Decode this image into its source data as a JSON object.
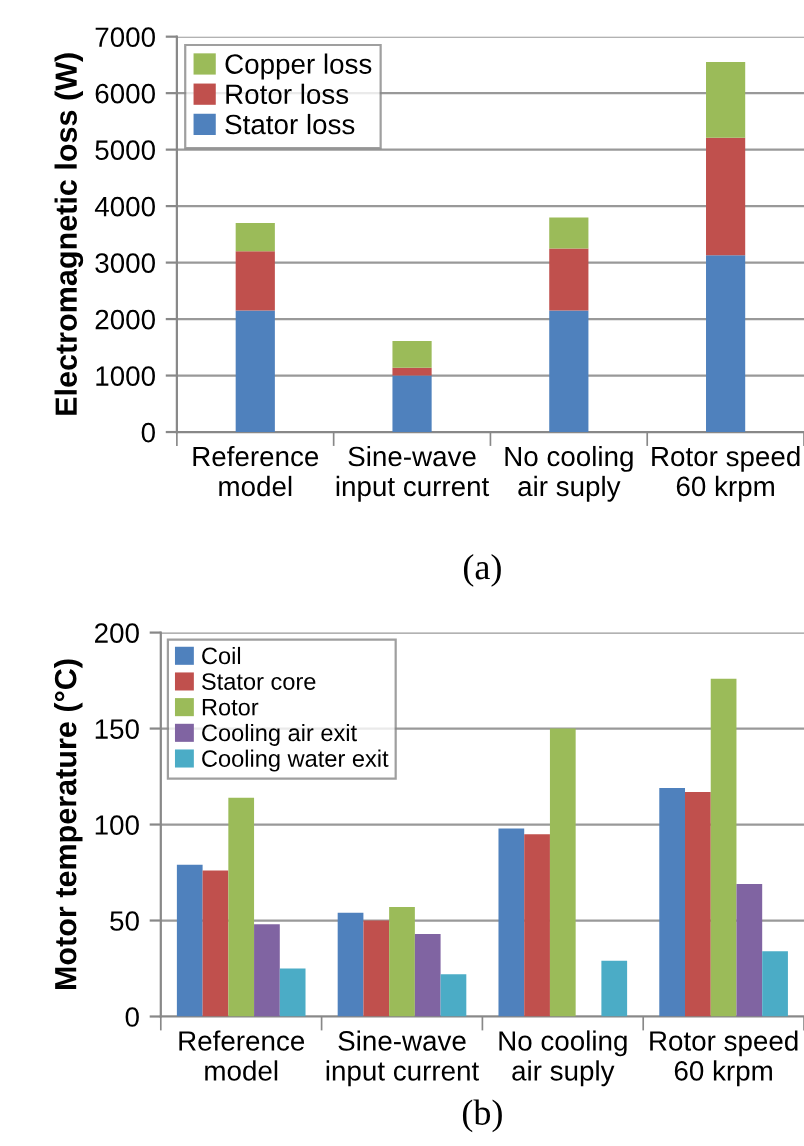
{
  "chart_data": [
    {
      "type": "bar",
      "stacked": true,
      "ylabel": "Electromagnetic loss (W)",
      "categories": [
        "Reference\nmodel",
        "Sine-wave\ninput current",
        "No cooling\nair suply",
        "Rotor speed\n60 krpm"
      ],
      "series": [
        {
          "name": "Stator loss",
          "color": "#4f81bd",
          "values": [
            2150,
            1000,
            2150,
            3130
          ]
        },
        {
          "name": "Rotor loss",
          "color": "#c0504d",
          "values": [
            1050,
            140,
            1100,
            2080
          ]
        },
        {
          "name": "Copper loss",
          "color": "#9bbb59",
          "values": [
            500,
            470,
            550,
            1340
          ]
        }
      ],
      "ylim": [
        0,
        7000
      ],
      "yticks": [
        0,
        1000,
        2000,
        3000,
        4000,
        5000,
        6000,
        7000
      ],
      "grid": "y",
      "legend": "top left",
      "annotations": [
        "(a)"
      ]
    },
    {
      "type": "bar",
      "ylabel": "Motor temperature (°C)",
      "categories": [
        "Reference\nmodel",
        "Sine-wave\ninput current",
        "No cooling\nair suply",
        "Rotor speed\n60 krpm"
      ],
      "series": [
        {
          "name": "Coil",
          "color": "#4f81bd",
          "values": [
            79,
            54,
            98,
            119
          ]
        },
        {
          "name": "Stator core",
          "color": "#c0504d",
          "values": [
            76,
            50,
            95,
            117
          ]
        },
        {
          "name": "Rotor",
          "color": "#9bbb59",
          "values": [
            114,
            57,
            150,
            176
          ]
        },
        {
          "name": "Cooling air exit",
          "color": "#8064a2",
          "values": [
            48,
            43,
            null,
            69
          ]
        },
        {
          "name": "Cooling water exit",
          "color": "#4bacc6",
          "values": [
            25,
            22,
            29,
            34
          ]
        }
      ],
      "ylim": [
        0,
        200
      ],
      "yticks": [
        0,
        50,
        100,
        150,
        200
      ],
      "grid": "y",
      "legend": "top left",
      "annotations": [
        "(b)"
      ]
    }
  ]
}
